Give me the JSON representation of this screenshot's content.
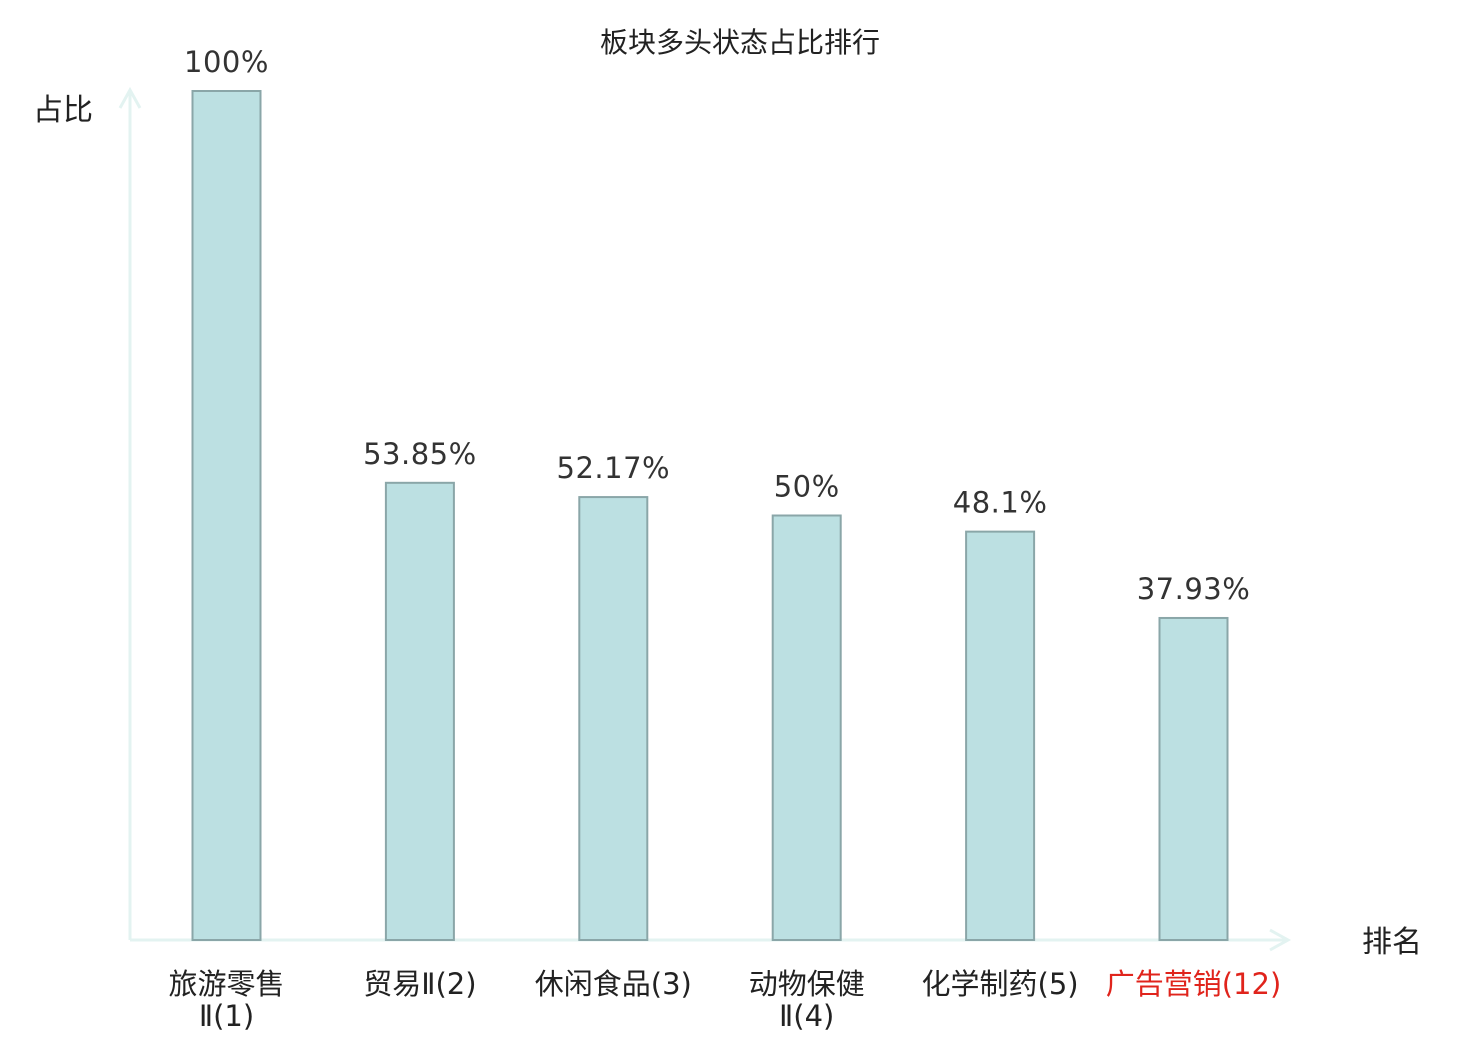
{
  "chart_data": {
    "type": "bar",
    "title": "板块多头状态占比排行",
    "ylabel": "占比",
    "xlabel": "排名",
    "ylim": [
      0,
      100
    ],
    "grid": false,
    "legend": "none",
    "categories": [
      [
        "旅游零售",
        "Ⅱ(1)"
      ],
      [
        "贸易Ⅱ(2)"
      ],
      [
        "休闲食品(3)"
      ],
      [
        "动物保健",
        "Ⅱ(4)"
      ],
      [
        "化学制药(5)"
      ],
      [
        "广告营销(12)"
      ]
    ],
    "values": [
      100,
      53.85,
      52.17,
      50,
      48.1,
      37.93
    ],
    "value_labels": [
      "100%",
      "53.85%",
      "52.17%",
      "50%",
      "48.1%",
      "37.93%"
    ],
    "highlight_index": 5,
    "colors": {
      "bar_fill": "#bce0e2",
      "bar_stroke": "#8aa6a8",
      "axis": "#e3f3f1",
      "text": "#222222",
      "value_text": "#333333",
      "highlight_text": "#e0241c"
    }
  }
}
